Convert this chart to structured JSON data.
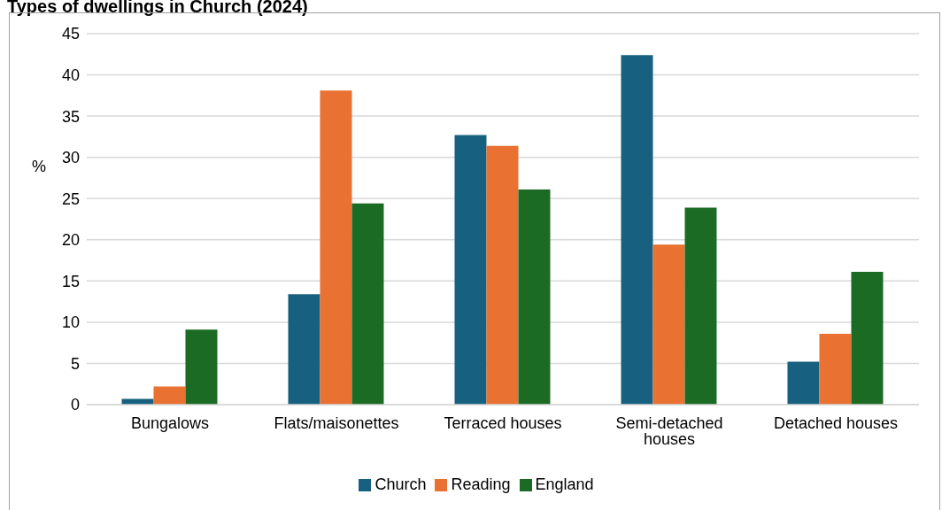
{
  "chart_data": {
    "type": "bar",
    "title": "Types of dwellings in Church (2024)",
    "ylabel": "%",
    "categories": [
      "Bungalows",
      "Flats/maisonettes",
      "Terraced houses",
      "Semi-detached houses",
      "Detached houses"
    ],
    "series": [
      {
        "name": "Church",
        "color": "#17607f",
        "values": [
          0.7,
          13.4,
          32.7,
          42.4,
          5.2
        ]
      },
      {
        "name": "Reading",
        "color": "#e97132",
        "values": [
          2.2,
          38.1,
          31.4,
          19.4,
          8.6
        ]
      },
      {
        "name": "England",
        "color": "#1c6b25",
        "values": [
          9.1,
          24.4,
          26.1,
          23.9,
          16.1
        ]
      }
    ],
    "ylim": [
      0,
      45
    ],
    "yticks": [
      0,
      5,
      10,
      15,
      20,
      25,
      30,
      35,
      40,
      45
    ],
    "grid": "y",
    "legend": "bottom"
  }
}
